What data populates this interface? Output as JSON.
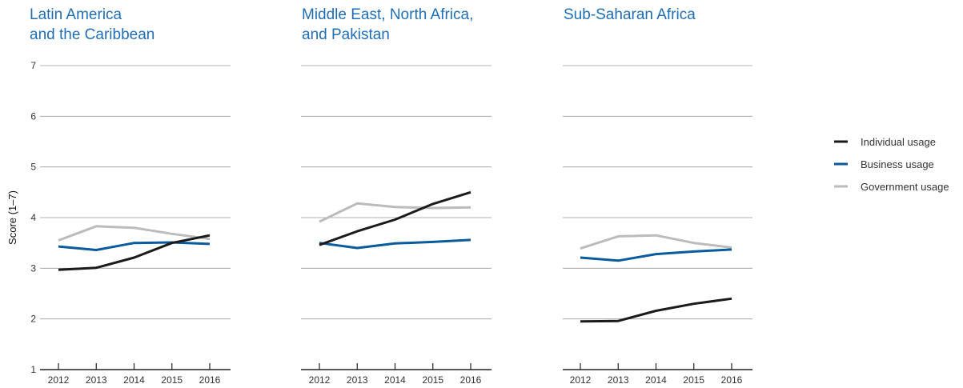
{
  "chart_data": [
    {
      "type": "line",
      "title": [
        "Latin America",
        "and the Caribbean"
      ],
      "ylabel": "Score (1–7)",
      "ylim": [
        1,
        7
      ],
      "y_ticks": [
        "1",
        "2",
        "3",
        "4",
        "5",
        "6",
        "7"
      ],
      "x": [
        "2012",
        "2013",
        "2014",
        "2015",
        "2016"
      ],
      "series": [
        {
          "name": "Individual usage",
          "values": [
            2.97,
            3.01,
            3.21,
            3.5,
            3.65
          ]
        },
        {
          "name": "Business usage",
          "values": [
            3.43,
            3.36,
            3.5,
            3.51,
            3.48
          ]
        },
        {
          "name": "Government usage",
          "values": [
            3.55,
            3.83,
            3.8,
            3.68,
            3.58
          ]
        }
      ]
    },
    {
      "type": "line",
      "title": [
        "Middle East, North Africa,",
        "and Pakistan"
      ],
      "ylim": [
        1,
        7
      ],
      "x": [
        "2012",
        "2013",
        "2014",
        "2015",
        "2016"
      ],
      "series": [
        {
          "name": "Individual usage",
          "values": [
            3.46,
            3.73,
            3.96,
            4.27,
            4.5
          ]
        },
        {
          "name": "Business usage",
          "values": [
            3.5,
            3.4,
            3.49,
            3.52,
            3.56
          ]
        },
        {
          "name": "Government usage",
          "values": [
            3.92,
            4.28,
            4.21,
            4.19,
            4.2
          ]
        }
      ]
    },
    {
      "type": "line",
      "title": [
        "Sub-Saharan Africa"
      ],
      "ylim": [
        1,
        7
      ],
      "x": [
        "2012",
        "2013",
        "2014",
        "2015",
        "2016"
      ],
      "series": [
        {
          "name": "Individual usage",
          "values": [
            1.95,
            1.96,
            2.16,
            2.3,
            2.4
          ]
        },
        {
          "name": "Business usage",
          "values": [
            3.21,
            3.15,
            3.28,
            3.33,
            3.37
          ]
        },
        {
          "name": "Government usage",
          "values": [
            3.39,
            3.63,
            3.65,
            3.5,
            3.41
          ]
        }
      ]
    }
  ],
  "legend": {
    "position": "right",
    "items": [
      {
        "label": "Individual usage",
        "color": "#1a1a1a"
      },
      {
        "label": "Business usage",
        "color": "#0a5a9e"
      },
      {
        "label": "Government usage",
        "color": "#bbbbbb"
      }
    ]
  },
  "colors": {
    "title": "#1f6eb6",
    "individual": "#1a1a1a",
    "business": "#0a5a9e",
    "government": "#bbbbbb",
    "grid": "#9a9a9a"
  }
}
